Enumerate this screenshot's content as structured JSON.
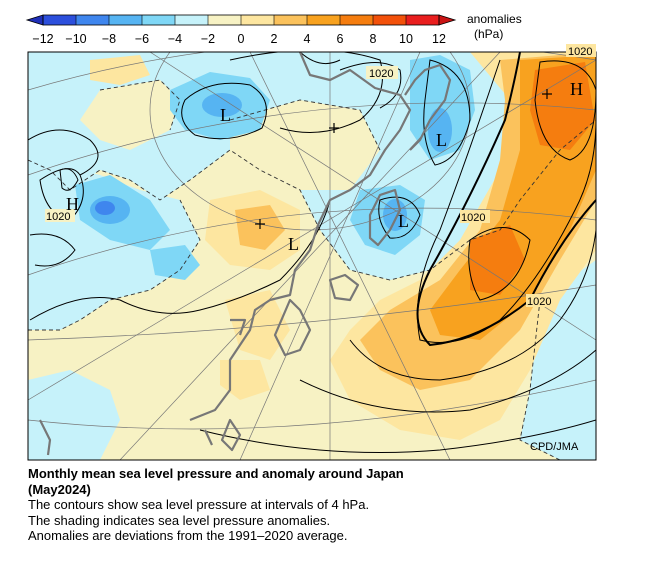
{
  "colorbar": {
    "ticks": [
      "−12",
      "−10",
      "−8",
      "−6",
      "−4",
      "−2",
      "0",
      "2",
      "4",
      "6",
      "8",
      "10",
      "12"
    ],
    "colors": [
      "#2c4fdc",
      "#3f86ee",
      "#56b4f2",
      "#7fd7f6",
      "#c6f2fa",
      "#f7f2c4",
      "#fde6a0",
      "#fbc25c",
      "#f8a21f",
      "#f57d0f",
      "#f2510a",
      "#e91e1e"
    ],
    "unit_line1": "anomalies",
    "unit_line2": "(hPa)"
  },
  "map": {
    "contour_labels": [
      "1020",
      "1020",
      "1020",
      "1020",
      "1020"
    ],
    "high_symbols": [
      "H",
      "H"
    ],
    "low_symbols": [
      "L",
      "L",
      "L",
      "L"
    ],
    "credit": "CPD/JMA"
  },
  "caption": {
    "title_line1": "Monthly mean sea level pressure and anomaly around Japan",
    "title_line2": "(May2024)",
    "line1": "The contours show sea level pressure at intervals of 4 hPa.",
    "line2": "The shading indicates sea level pressure anomalies.",
    "line3": "Anomalies are deviations from the 1991–2020 average."
  }
}
